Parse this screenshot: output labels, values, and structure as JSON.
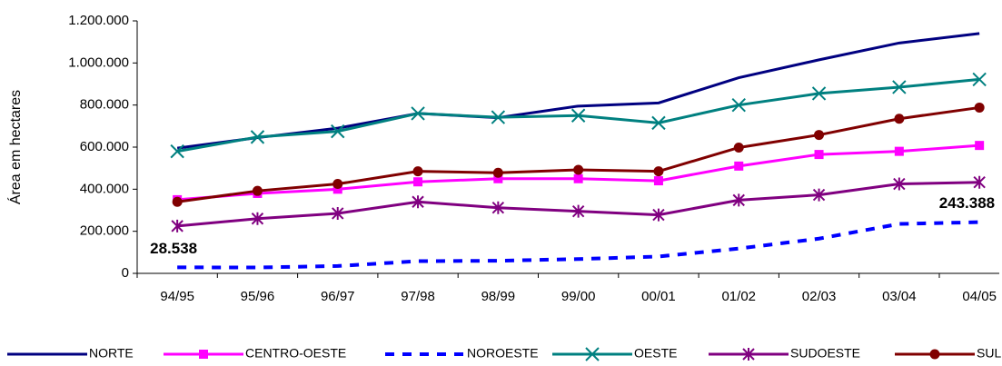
{
  "chart_data": {
    "type": "line",
    "y_label": "Área em hectares",
    "categories": [
      "94/95",
      "95/96",
      "96/97",
      "97/98",
      "98/99",
      "99/00",
      "00/01",
      "01/02",
      "02/03",
      "03/04",
      "04/05"
    ],
    "ylim": [
      0,
      1200000
    ],
    "yticks": [
      0,
      {
        "value": 200000,
        "label": "200.000"
      },
      {
        "value": 400000,
        "label": "400.000"
      },
      {
        "value": 600000,
        "label": "600.000"
      },
      {
        "value": 800000,
        "label": "800.000"
      },
      {
        "value": 1000000,
        "label": "1.000.000"
      },
      {
        "value": 1200000,
        "label": "1.200.000"
      }
    ],
    "grid": false,
    "legend": "bottom",
    "series": [
      {
        "name": "NORTE",
        "color": "#000080",
        "marker": "none",
        "dash": false,
        "values": [
          595000,
          645000,
          690000,
          760000,
          740000,
          795000,
          810000,
          930000,
          1015000,
          1095000,
          1140000
        ]
      },
      {
        "name": "CENTRO-OESTE",
        "color": "#ff00ff",
        "marker": "square",
        "dash": false,
        "values": [
          350000,
          380000,
          400000,
          435000,
          450000,
          450000,
          440000,
          510000,
          565000,
          580000,
          608000
        ]
      },
      {
        "name": "NOROESTE",
        "color": "#0000ff",
        "marker": "none",
        "dash": true,
        "values": [
          28538,
          28000,
          35000,
          58000,
          60000,
          68000,
          80000,
          118000,
          165000,
          235000,
          243388
        ],
        "value_labels": [
          "28.538",
          null,
          null,
          null,
          null,
          null,
          null,
          null,
          null,
          null,
          "243.388"
        ]
      },
      {
        "name": "OESTE",
        "color": "#008080",
        "marker": "x",
        "dash": false,
        "values": [
          580000,
          648000,
          675000,
          760000,
          742000,
          750000,
          715000,
          800000,
          855000,
          885000,
          922000
        ]
      },
      {
        "name": "SUDOESTE",
        "color": "#800080",
        "marker": "star",
        "dash": false,
        "values": [
          225000,
          260000,
          285000,
          340000,
          312000,
          295000,
          278000,
          348000,
          373000,
          425000,
          433000
        ]
      },
      {
        "name": "SUL",
        "color": "#800000",
        "marker": "circle",
        "dash": false,
        "values": [
          340000,
          392000,
          425000,
          485000,
          478000,
          492000,
          485000,
          598000,
          658000,
          735000,
          788000
        ]
      }
    ]
  }
}
